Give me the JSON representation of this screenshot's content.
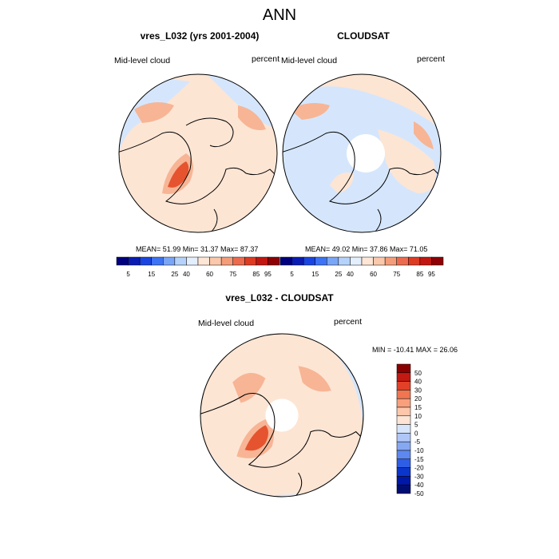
{
  "figure_title": "ANN",
  "colors": {
    "abs_scale": [
      "#00007f",
      "#0a1cb4",
      "#1a45e0",
      "#3d73f4",
      "#7aa6f6",
      "#b5d2fa",
      "#e4effd",
      "#fde6d6",
      "#fbc8ac",
      "#f59d7a",
      "#ec6b4e",
      "#de3b23",
      "#c21710",
      "#8f0005"
    ],
    "diff_scale": [
      "#000e72",
      "#0018a8",
      "#0b36cc",
      "#2f5ee6",
      "#5d88f0",
      "#86a8f2",
      "#afc6f7",
      "#d7e5fb",
      "#fde5d5",
      "#fcc7ab",
      "#f8a07c",
      "#f07550",
      "#e24128",
      "#c21a12",
      "#8a0000"
    ],
    "land_line": "#000000",
    "low_fill": "#d5e6fc",
    "mid_fill": "#fde5d4",
    "high_fill": "#f7b595",
    "peak_fill": "#e5542f"
  },
  "panels": {
    "model": {
      "title": "vres_L032 (yrs 2001-2004)",
      "left_label": "Mid-level cloud",
      "right_label": "percent",
      "stats": "MEAN=  51.99  Min=  31.37  Max=  87.37"
    },
    "obs": {
      "title": "CLOUDSAT",
      "left_label": "Mid-level cloud",
      "right_label": "percent",
      "stats": "MEAN=  49.02  Min=  37.86  Max=  71.05"
    },
    "diff": {
      "title": "vres_L032 - CLOUDSAT",
      "left_label": "Mid-level cloud",
      "right_label": "percent",
      "stats": "MIN = -10.41 MAX =  26.06"
    }
  },
  "abs_colorbar_labels": [
    "5",
    "15",
    "25",
    "40",
    "60",
    "75",
    "85",
    "95"
  ],
  "diff_colorbar_labels": [
    "50",
    "40",
    "30",
    "20",
    "15",
    "10",
    "5",
    "0",
    "-5",
    "-10",
    "-15",
    "-20",
    "-30",
    "-40",
    "-50"
  ]
}
